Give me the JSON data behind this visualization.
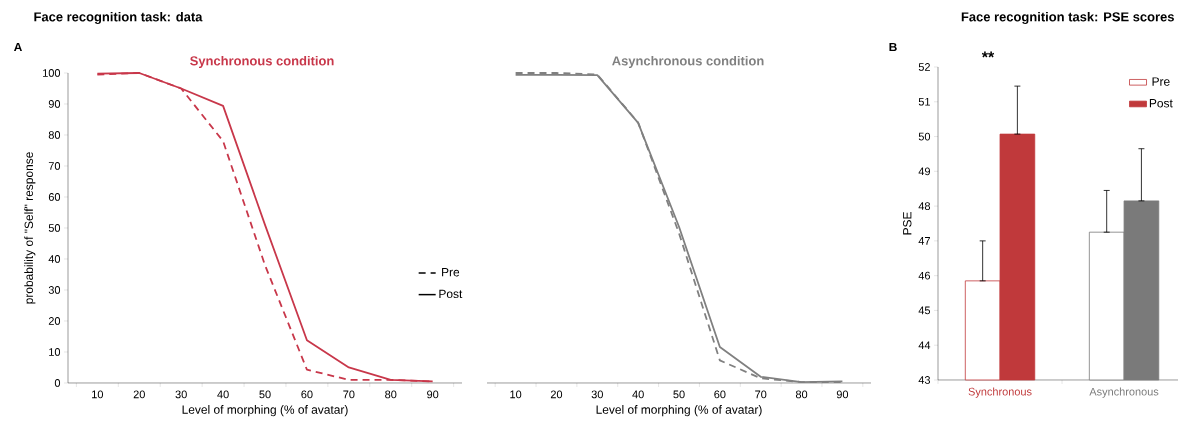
{
  "chart_data": [
    {
      "type": "line",
      "title": "Face recognition task: data",
      "subtitle": "Synchronous condition",
      "xlabel": "Level of morphing (% of avatar)",
      "ylabel": "probability of \"Self\" response",
      "annotations": [
        "A"
      ],
      "categories": [
        "10",
        "20",
        "30",
        "40",
        "50",
        "60",
        "70",
        "80",
        "90"
      ],
      "series": [
        {
          "name": "Pre",
          "color": "#c8374a",
          "line_style": "dashed",
          "values": [
            99.5,
            100,
            95,
            78,
            38,
            4.3,
            1,
            1,
            0.5
          ]
        },
        {
          "name": "Post",
          "color": "#c8374a",
          "line_style": "solid",
          "values": [
            99.8,
            100,
            95,
            89.4,
            51,
            13.8,
            5,
            1,
            0.5
          ]
        }
      ],
      "ylim": [
        0,
        100
      ],
      "yticks": [
        0,
        10,
        20,
        30,
        40,
        50,
        60,
        70,
        80,
        90,
        100
      ],
      "legend": "right"
    },
    {
      "type": "line",
      "title": "Asynchronous condition",
      "xlabel": "Level of morphing (% of avatar)",
      "categories": [
        "10",
        "20",
        "30",
        "40",
        "50",
        "60",
        "70",
        "80",
        "90"
      ],
      "series": [
        {
          "color": "#808080",
          "line_style": "dashed",
          "values": [
            100,
            100,
            99.5,
            84,
            48.3,
            7.3,
            1.5,
            0.3,
            0.3
          ]
        },
        {
          "color": "#808080",
          "line_style": "solid",
          "values": [
            99.4,
            99.4,
            99.3,
            83.9,
            50.4,
            11.6,
            2,
            0.3,
            0.5
          ]
        }
      ],
      "ylim": [
        0,
        100
      ],
      "tick_labels": "x"
    },
    {
      "type": "bar",
      "title": "Face recognition task: PSE scores",
      "ylabel": "PSE",
      "annotations": [
        "B",
        "**"
      ],
      "categories": [
        "Synchronous",
        "Asynchronous"
      ],
      "series": [
        {
          "name": "Pre",
          "colors": [
            "#ffffff",
            "#ffffff"
          ],
          "values": [
            45.85,
            47.25
          ],
          "errors": [
            [
              45.85,
              47.0
            ],
            [
              47.25,
              48.45
            ]
          ]
        },
        {
          "name": "Post",
          "colors": [
            "#c0393b",
            "#7a7a7a"
          ],
          "values": [
            50.07,
            48.15
          ],
          "errors": [
            [
              50.07,
              51.45
            ],
            [
              48.15,
              49.65
            ]
          ]
        }
      ],
      "ylim": [
        43,
        52
      ],
      "yticks": [
        43,
        44,
        45,
        46,
        47,
        48,
        49,
        50,
        51,
        52
      ],
      "legend": "top right"
    }
  ]
}
